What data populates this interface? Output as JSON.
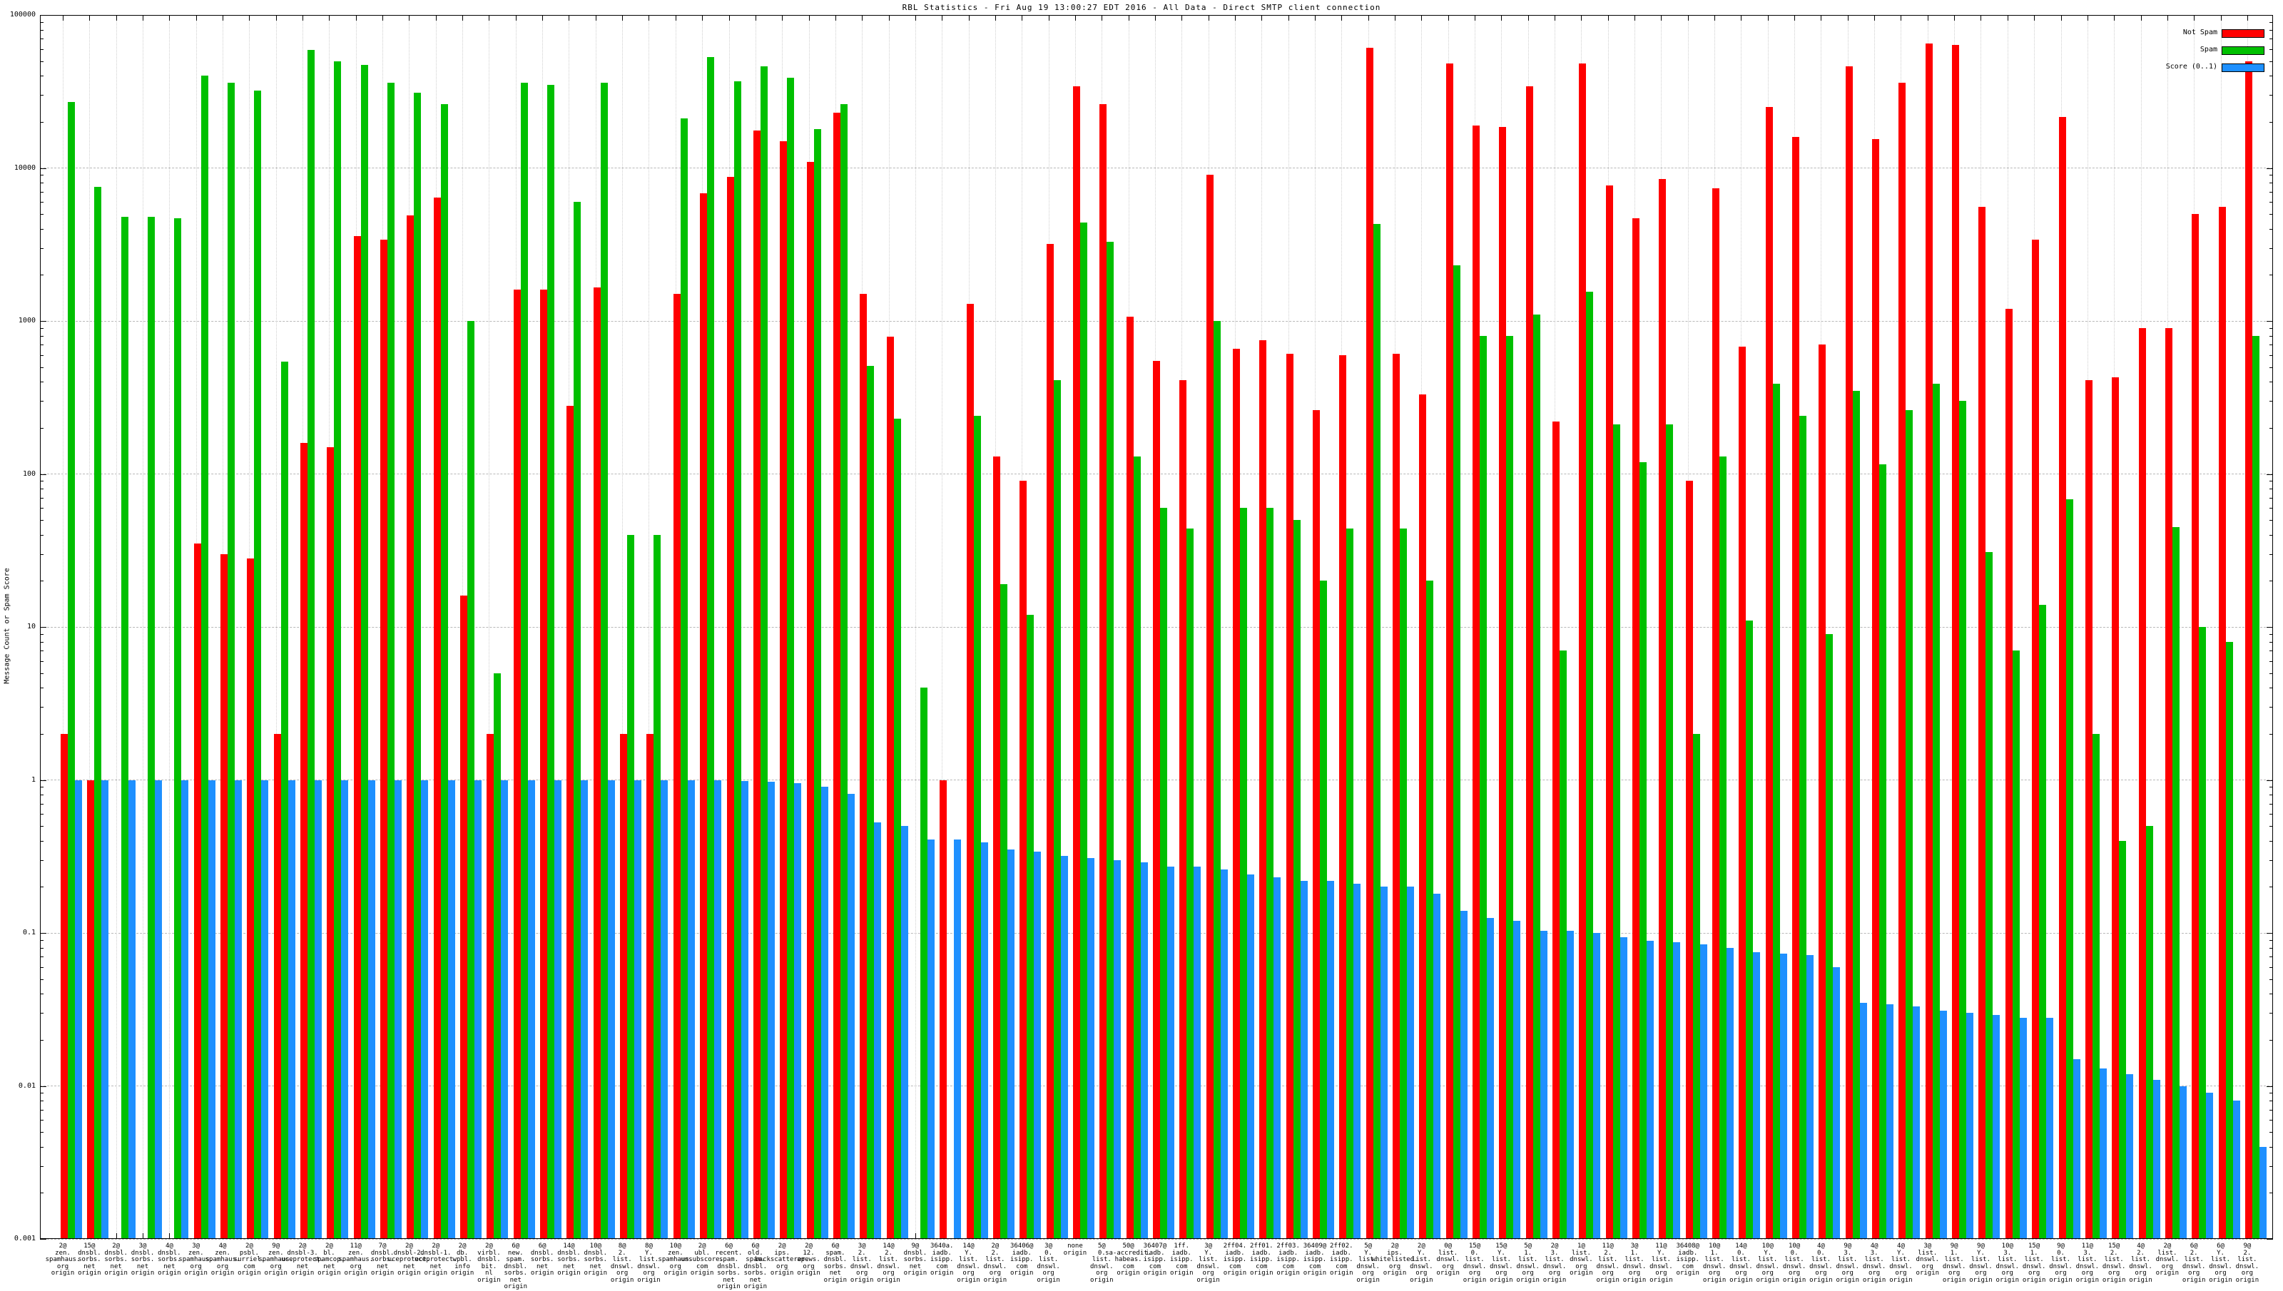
{
  "title": "RBL Statistics - Fri Aug 19 13:00:27 EDT 2016 - All Data - Direct SMTP client connection",
  "y_axis": {
    "label": "Message Count or Spam Score",
    "tick_labels": [
      "100000",
      "10000",
      "1000",
      "100",
      "10",
      "1",
      "0.1",
      "0.01",
      "0.001"
    ],
    "scale": "log"
  },
  "x_axis": {
    "tick_label_suffix": "origin"
  },
  "legend": {
    "position": "top-right",
    "items": [
      "Not Spam",
      "Spam",
      "Score (0..1)"
    ]
  },
  "colors": {
    "not_spam": "#ff0000",
    "spam": "#00c000",
    "score": "#1e90ff",
    "grid": "#b8b8b8"
  },
  "chart_data": {
    "type": "bar",
    "y_scale": "log",
    "ylim": [
      0.001,
      100000
    ],
    "grid": true,
    "legend_position": "top-right",
    "title": "RBL Statistics - Fri Aug 19 13:00:27 EDT 2016 - All Data - Direct SMTP client connection",
    "ylabel": "Message Count or Spam Score",
    "category_suffix": "origin",
    "categories": [
      "2@zen.spamhaus.org",
      "15@dnsbl.sorbs.net",
      "2@dnsbl.sorbs.net",
      "3@dnsbl.sorbs.net",
      "4@dnsbl.sorbs.net",
      "3@zen.spamhaus.org",
      "4@zen.spamhaus.org",
      "2@psbl.surriel.com",
      "9@zen.spamhaus.org",
      "2@dnsbl-3.uceprotect.net",
      "2@bl.spamcop.net",
      "11@zen.spamhaus.org",
      "7@dnsbl.sorbs.net",
      "2@dnsbl-2.uceprotect.net",
      "2@dnsbl-1.uceprotect.net",
      "2@db.wpbl.info",
      "2@virbl.dnsbl.bit.nl",
      "6@new.spam.dnsbl.sorbs.net",
      "6@dnsbl.sorbs.net",
      "14@dnsbl.sorbs.net",
      "10@dnsbl.sorbs.net",
      "8@2.list.dnswl.org",
      "8@Y.list.dnswl.org",
      "10@zen.spamhaus.org",
      "2@ubl.unsubscore.com",
      "6@recent.spam.dnsbl.sorbs.net",
      "6@old.spam.dnsbl.sorbs.net",
      "2@ips.backscatterer.org",
      "2@12.apews.org",
      "6@spam.dnsbl.sorbs.net",
      "3@2.list.dnswl.org",
      "14@2.list.dnswl.org",
      "9@dnsbl.sorbs.net",
      "3640a.iadb.isipp.com",
      "14@Y.list.dnswl.org",
      "2@2.list.dnswl.org",
      "36406@iadb.isipp.com",
      "3@0.list.dnswl.org",
      "none",
      "5@0.list.dnswl.org",
      "50@sa-accredit.habeas.com",
      "36407@iadb.isipp.com",
      "1ff.iadb.isipp.com",
      "3@Y.list.dnswl.org",
      "2ff04.iadb.isipp.com",
      "2ff01.iadb.isipp.com",
      "2ff03.iadb.isipp.com",
      "36409@iadb.isipp.com",
      "2ff02.iadb.isipp.com",
      "5@Y.list.dnswl.org",
      "2@ips.whitelisted.org",
      "2@Y.list.dnswl.org",
      "0@list.dnswl.org",
      "15@0.list.dnswl.org",
      "15@Y.list.dnswl.org",
      "5@1.list.dnswl.org",
      "2@3.list.dnswl.org",
      "1@list.dnswl.org",
      "11@2.list.dnswl.org",
      "3@1.list.dnswl.org",
      "11@Y.list.dnswl.org",
      "36408@iadb.isipp.com",
      "10@1.list.dnswl.org",
      "14@0.list.dnswl.org",
      "10@Y.list.dnswl.org",
      "10@0.list.dnswl.org",
      "4@0.list.dnswl.org",
      "9@3.list.dnswl.org",
      "4@3.list.dnswl.org",
      "4@Y.list.dnswl.org",
      "3@list.dnswl.org",
      "9@1.list.dnswl.org",
      "9@Y.list.dnswl.org",
      "10@3.list.dnswl.org",
      "15@1.list.dnswl.org",
      "9@0.list.dnswl.org",
      "11@3.list.dnswl.org",
      "15@2.list.dnswl.org",
      "4@2.list.dnswl.org",
      "2@list.dnswl.org",
      "6@2.list.dnswl.org",
      "6@Y.list.dnswl.org",
      "9@2.list.dnswl.org"
    ],
    "series": [
      {
        "name": "Not Spam",
        "color": "#ff0000",
        "values": [
          2,
          1,
          0,
          0,
          0,
          35,
          30,
          28,
          2,
          160,
          150,
          3600,
          3400,
          4900,
          6400,
          16,
          2,
          1600,
          1600,
          280,
          1650,
          2,
          2,
          1500,
          6800,
          8700,
          17500,
          15000,
          11000,
          23000,
          1500,
          790,
          0,
          1,
          1300,
          130,
          90,
          3200,
          34000,
          26000,
          1070,
          550,
          410,
          9000,
          660,
          750,
          610,
          260,
          600,
          61000,
          610,
          330,
          48000,
          19000,
          18500,
          34000,
          220,
          48000,
          7700,
          4700,
          8500,
          90,
          7400,
          680,
          25000,
          16000,
          700,
          46000,
          15500,
          36000,
          65000,
          64000,
          5600,
          1200,
          3400,
          21500,
          410,
          430,
          900,
          900,
          5000,
          5600,
          50000
        ]
      },
      {
        "name": "Spam",
        "color": "#00c000",
        "values": [
          27000,
          7500,
          4800,
          4800,
          4700,
          40000,
          36000,
          32000,
          540,
          59000,
          50000,
          47000,
          36000,
          31000,
          26000,
          1000,
          5,
          36000,
          35000,
          6000,
          36000,
          40,
          40,
          21000,
          53000,
          37000,
          46000,
          39000,
          18000,
          26000,
          510,
          230,
          4,
          0,
          240,
          19,
          12,
          410,
          4400,
          3300,
          130,
          60,
          44,
          1000,
          60,
          60,
          50,
          20,
          44,
          4300,
          44,
          20,
          2300,
          800,
          800,
          1100,
          7,
          1550,
          210,
          120,
          210,
          2,
          130,
          11,
          390,
          240,
          9,
          350,
          115,
          260,
          390,
          300,
          31,
          7,
          14,
          68,
          2,
          0.4,
          0.5,
          45,
          10,
          8,
          800
        ]
      },
      {
        "name": "Score (0..1)",
        "color": "#1e90ff",
        "values": [
          1,
          1,
          1,
          1,
          1,
          1,
          1,
          1,
          1,
          1,
          1,
          1,
          1,
          1,
          0.99,
          1,
          1,
          0.99,
          0.99,
          0.99,
          0.99,
          0.99,
          0.99,
          0.99,
          0.99,
          0.98,
          0.97,
          0.95,
          0.9,
          0.81,
          0.53,
          0.5,
          0.41,
          0.41,
          0.39,
          0.35,
          0.34,
          0.32,
          0.31,
          0.3,
          0.29,
          0.27,
          0.27,
          0.26,
          0.24,
          0.23,
          0.22,
          0.22,
          0.21,
          0.2,
          0.2,
          0.18,
          0.14,
          0.125,
          0.12,
          0.103,
          0.103,
          0.1,
          0.094,
          0.089,
          0.087,
          0.084,
          0.08,
          0.075,
          0.073,
          0.072,
          0.06,
          0.035,
          0.034,
          0.033,
          0.031,
          0.03,
          0.029,
          0.028,
          0.028,
          0.015,
          0.013,
          0.012,
          0.011,
          0.01,
          0.009,
          0.008,
          0.004
        ]
      }
    ]
  }
}
